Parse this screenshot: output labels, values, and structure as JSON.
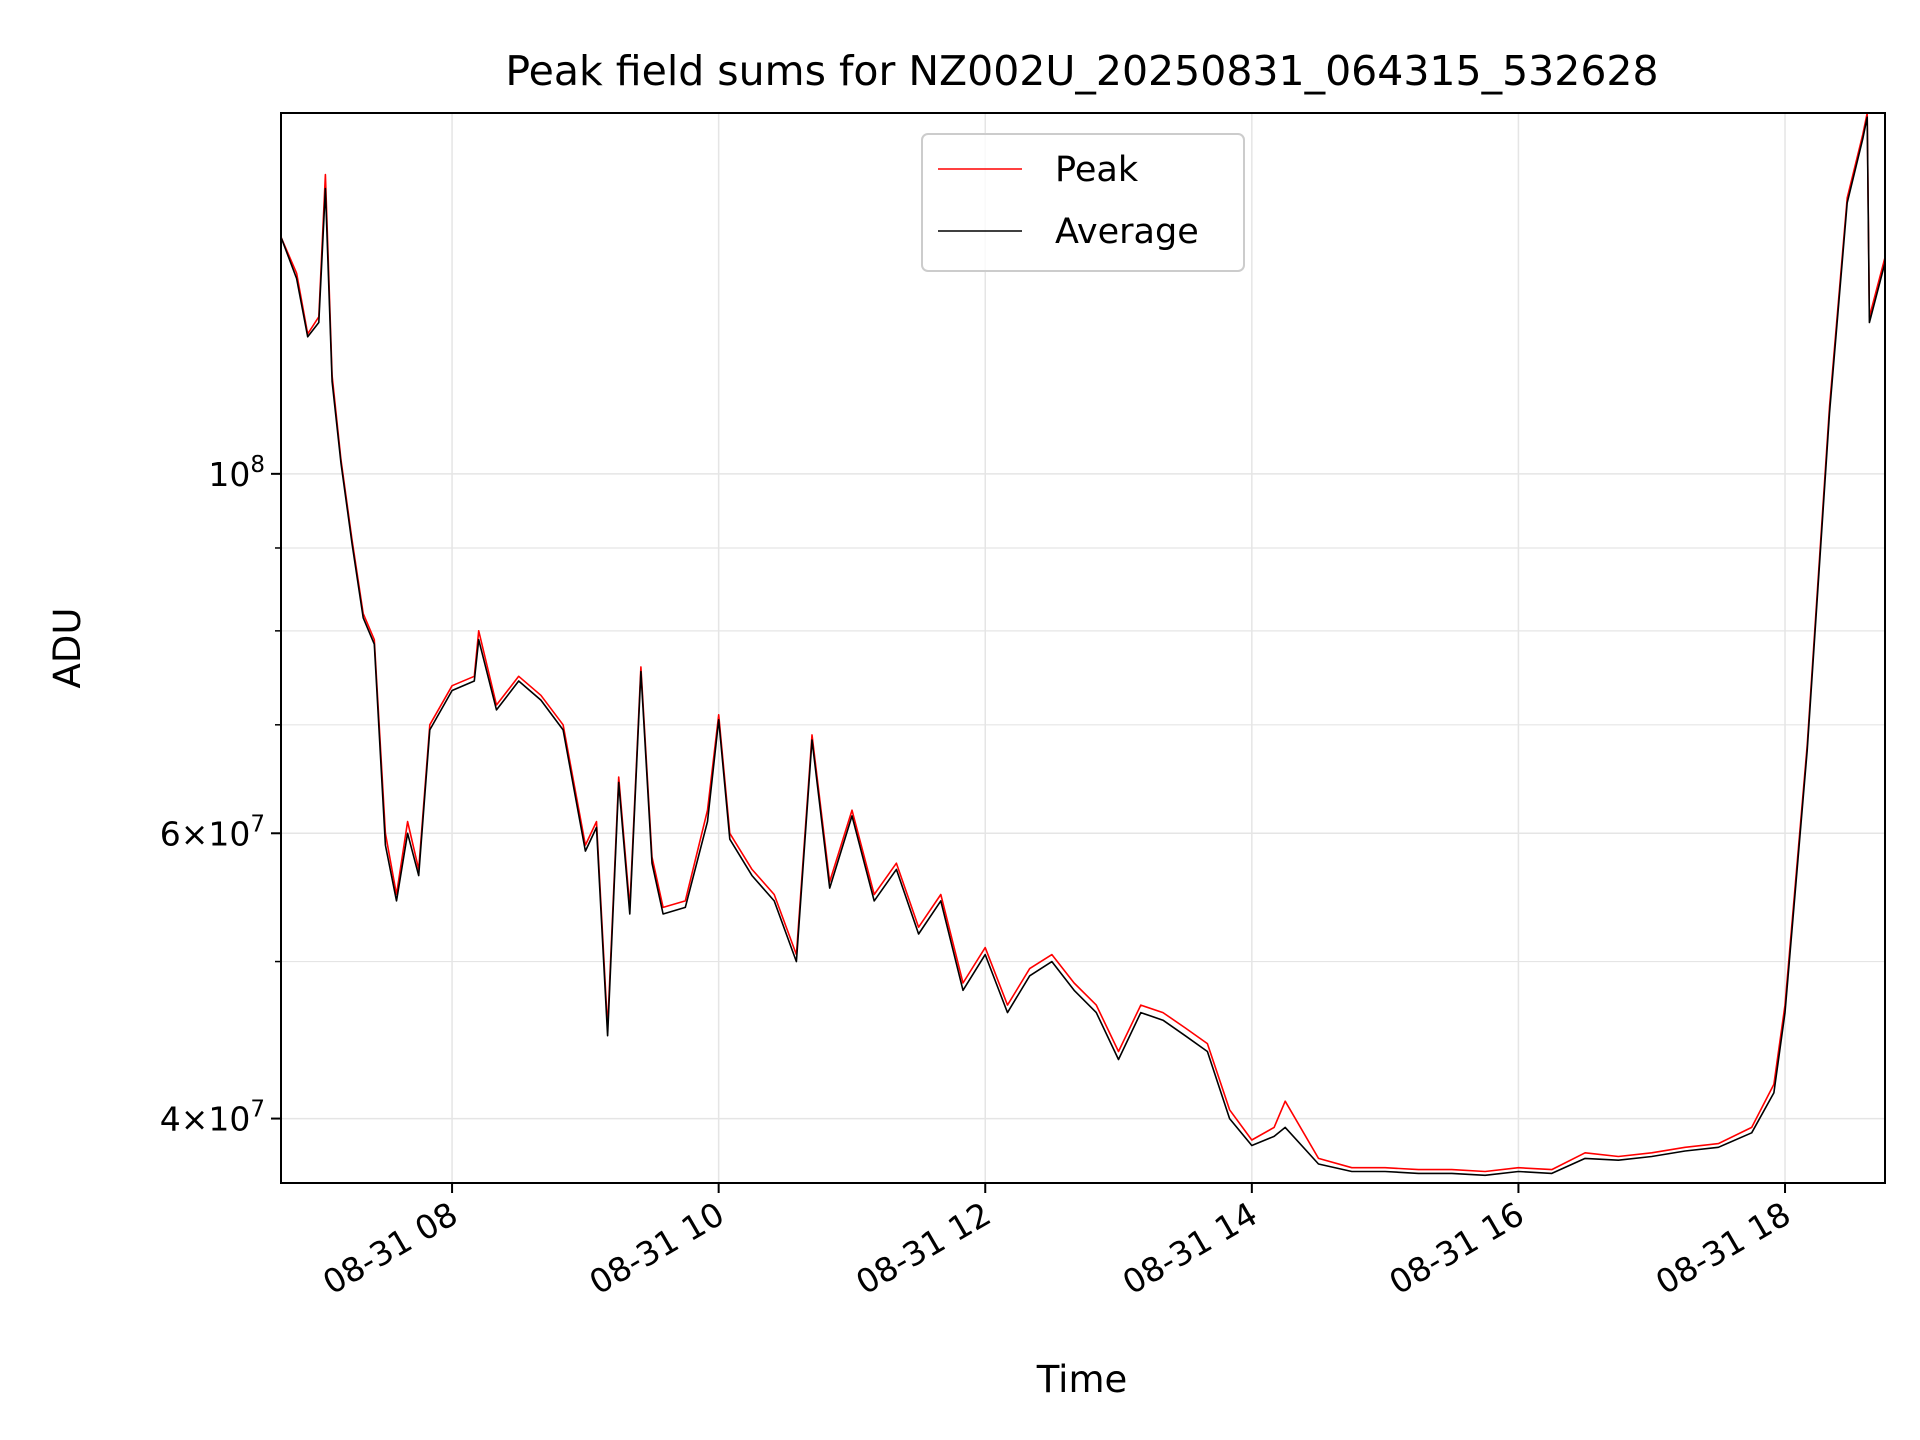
{
  "chart_data": {
    "type": "line",
    "title": "Peak field sums for NZ002U_20250831_064315_532628",
    "xlabel": "Time",
    "ylabel": "ADU",
    "x_axis_type": "time",
    "xlim": [
      "2025-08-31T06:43",
      "2025-08-31T18:45"
    ],
    "ylim": [
      36500000,
      167000000
    ],
    "yscale": "log",
    "grid": true,
    "legend_position": "top-center",
    "x_tick_labels": [
      "08-31 08",
      "08-31 10",
      "08-31 12",
      "08-31 14",
      "08-31 16",
      "08-31 18"
    ],
    "x_ticks": [
      "2025-08-31T08:00",
      "2025-08-31T10:00",
      "2025-08-31T12:00",
      "2025-08-31T14:00",
      "2025-08-31T16:00",
      "2025-08-31T18:00"
    ],
    "y_tick_labels": [
      {
        "mantissa": "",
        "base": "10",
        "exp": "8",
        "value": 100000000
      },
      {
        "mantissa": "6",
        "base": "10",
        "exp": "7",
        "value": 60000000
      },
      {
        "mantissa": "4",
        "base": "10",
        "exp": "7",
        "value": 40000000
      }
    ],
    "y_minor_ticks": [
      50000000,
      70000000,
      80000000,
      90000000
    ],
    "series": [
      {
        "name": "Peak",
        "color": "#ff0000",
        "points": [
          [
            "2025-08-31T06:43",
            140000000
          ],
          [
            "2025-08-31T06:50",
            133000000
          ],
          [
            "2025-08-31T06:55",
            122000000
          ],
          [
            "2025-08-31T07:00",
            125000000
          ],
          [
            "2025-08-31T07:03",
            153000000
          ],
          [
            "2025-08-31T07:06",
            115000000
          ],
          [
            "2025-08-31T07:10",
            102000000
          ],
          [
            "2025-08-31T07:15",
            91000000
          ],
          [
            "2025-08-31T07:20",
            82000000
          ],
          [
            "2025-08-31T07:25",
            79000000
          ],
          [
            "2025-08-31T07:30",
            60000000
          ],
          [
            "2025-08-31T07:35",
            55000000
          ],
          [
            "2025-08-31T07:40",
            61000000
          ],
          [
            "2025-08-31T07:45",
            57000000
          ],
          [
            "2025-08-31T07:50",
            70000000
          ],
          [
            "2025-08-31T08:00",
            74000000
          ],
          [
            "2025-08-31T08:10",
            75000000
          ],
          [
            "2025-08-31T08:12",
            80000000
          ],
          [
            "2025-08-31T08:20",
            72000000
          ],
          [
            "2025-08-31T08:30",
            75000000
          ],
          [
            "2025-08-31T08:40",
            73000000
          ],
          [
            "2025-08-31T08:50",
            70000000
          ],
          [
            "2025-08-31T09:00",
            59000000
          ],
          [
            "2025-08-31T09:05",
            61000000
          ],
          [
            "2025-08-31T09:10",
            45500000
          ],
          [
            "2025-08-31T09:15",
            65000000
          ],
          [
            "2025-08-31T09:20",
            54000000
          ],
          [
            "2025-08-31T09:25",
            76000000
          ],
          [
            "2025-08-31T09:30",
            58000000
          ],
          [
            "2025-08-31T09:35",
            54000000
          ],
          [
            "2025-08-31T09:45",
            54500000
          ],
          [
            "2025-08-31T09:55",
            62000000
          ],
          [
            "2025-08-31T10:00",
            71000000
          ],
          [
            "2025-08-31T10:05",
            60000000
          ],
          [
            "2025-08-31T10:15",
            57000000
          ],
          [
            "2025-08-31T10:25",
            55000000
          ],
          [
            "2025-08-31T10:35",
            50500000
          ],
          [
            "2025-08-31T10:42",
            69000000
          ],
          [
            "2025-08-31T10:50",
            56000000
          ],
          [
            "2025-08-31T11:00",
            62000000
          ],
          [
            "2025-08-31T11:10",
            55000000
          ],
          [
            "2025-08-31T11:20",
            57500000
          ],
          [
            "2025-08-31T11:30",
            52500000
          ],
          [
            "2025-08-31T11:40",
            55000000
          ],
          [
            "2025-08-31T11:50",
            48500000
          ],
          [
            "2025-08-31T12:00",
            51000000
          ],
          [
            "2025-08-31T12:10",
            47000000
          ],
          [
            "2025-08-31T12:20",
            49500000
          ],
          [
            "2025-08-31T12:30",
            50500000
          ],
          [
            "2025-08-31T12:40",
            48500000
          ],
          [
            "2025-08-31T12:50",
            47000000
          ],
          [
            "2025-08-31T13:00",
            44000000
          ],
          [
            "2025-08-31T13:10",
            47000000
          ],
          [
            "2025-08-31T13:20",
            46500000
          ],
          [
            "2025-08-31T13:30",
            45500000
          ],
          [
            "2025-08-31T13:40",
            44500000
          ],
          [
            "2025-08-31T13:50",
            40500000
          ],
          [
            "2025-08-31T14:00",
            38800000
          ],
          [
            "2025-08-31T14:10",
            39500000
          ],
          [
            "2025-08-31T14:15",
            41000000
          ],
          [
            "2025-08-31T14:30",
            37800000
          ],
          [
            "2025-08-31T14:45",
            37300000
          ],
          [
            "2025-08-31T15:00",
            37300000
          ],
          [
            "2025-08-31T15:15",
            37200000
          ],
          [
            "2025-08-31T15:30",
            37200000
          ],
          [
            "2025-08-31T15:45",
            37100000
          ],
          [
            "2025-08-31T16:00",
            37300000
          ],
          [
            "2025-08-31T16:15",
            37200000
          ],
          [
            "2025-08-31T16:30",
            38100000
          ],
          [
            "2025-08-31T16:45",
            37900000
          ],
          [
            "2025-08-31T17:00",
            38100000
          ],
          [
            "2025-08-31T17:15",
            38400000
          ],
          [
            "2025-08-31T17:30",
            38600000
          ],
          [
            "2025-08-31T17:45",
            39500000
          ],
          [
            "2025-08-31T17:55",
            42000000
          ],
          [
            "2025-08-31T18:00",
            47000000
          ],
          [
            "2025-08-31T18:10",
            68000000
          ],
          [
            "2025-08-31T18:20",
            110000000
          ],
          [
            "2025-08-31T18:28",
            148000000
          ],
          [
            "2025-08-31T18:35",
            162000000
          ],
          [
            "2025-08-31T18:37",
            167000000
          ],
          [
            "2025-08-31T18:38",
            125000000
          ],
          [
            "2025-08-31T18:45",
            136000000
          ]
        ]
      },
      {
        "name": "Average",
        "color": "#000000",
        "points": [
          [
            "2025-08-31T06:43",
            140000000
          ],
          [
            "2025-08-31T06:50",
            132000000
          ],
          [
            "2025-08-31T06:55",
            121500000
          ],
          [
            "2025-08-31T07:00",
            124000000
          ],
          [
            "2025-08-31T07:03",
            150000000
          ],
          [
            "2025-08-31T07:06",
            114000000
          ],
          [
            "2025-08-31T07:10",
            101500000
          ],
          [
            "2025-08-31T07:15",
            90500000
          ],
          [
            "2025-08-31T07:20",
            81500000
          ],
          [
            "2025-08-31T07:25",
            78500000
          ],
          [
            "2025-08-31T07:30",
            59000000
          ],
          [
            "2025-08-31T07:35",
            54500000
          ],
          [
            "2025-08-31T07:40",
            60000000
          ],
          [
            "2025-08-31T07:45",
            56500000
          ],
          [
            "2025-08-31T07:50",
            69500000
          ],
          [
            "2025-08-31T08:00",
            73500000
          ],
          [
            "2025-08-31T08:10",
            74500000
          ],
          [
            "2025-08-31T08:12",
            79000000
          ],
          [
            "2025-08-31T08:20",
            71500000
          ],
          [
            "2025-08-31T08:30",
            74500000
          ],
          [
            "2025-08-31T08:40",
            72500000
          ],
          [
            "2025-08-31T08:50",
            69500000
          ],
          [
            "2025-08-31T09:00",
            58500000
          ],
          [
            "2025-08-31T09:05",
            60500000
          ],
          [
            "2025-08-31T09:10",
            45000000
          ],
          [
            "2025-08-31T09:15",
            64500000
          ],
          [
            "2025-08-31T09:20",
            53500000
          ],
          [
            "2025-08-31T09:25",
            75500000
          ],
          [
            "2025-08-31T09:30",
            57500000
          ],
          [
            "2025-08-31T09:35",
            53500000
          ],
          [
            "2025-08-31T09:45",
            54000000
          ],
          [
            "2025-08-31T09:55",
            61000000
          ],
          [
            "2025-08-31T10:00",
            70500000
          ],
          [
            "2025-08-31T10:05",
            59500000
          ],
          [
            "2025-08-31T10:15",
            56500000
          ],
          [
            "2025-08-31T10:25",
            54500000
          ],
          [
            "2025-08-31T10:35",
            50000000
          ],
          [
            "2025-08-31T10:42",
            68500000
          ],
          [
            "2025-08-31T10:50",
            55500000
          ],
          [
            "2025-08-31T11:00",
            61500000
          ],
          [
            "2025-08-31T11:10",
            54500000
          ],
          [
            "2025-08-31T11:20",
            57000000
          ],
          [
            "2025-08-31T11:30",
            52000000
          ],
          [
            "2025-08-31T11:40",
            54500000
          ],
          [
            "2025-08-31T11:50",
            48000000
          ],
          [
            "2025-08-31T12:00",
            50500000
          ],
          [
            "2025-08-31T12:10",
            46500000
          ],
          [
            "2025-08-31T12:20",
            49000000
          ],
          [
            "2025-08-31T12:30",
            50000000
          ],
          [
            "2025-08-31T12:40",
            48000000
          ],
          [
            "2025-08-31T12:50",
            46500000
          ],
          [
            "2025-08-31T13:00",
            43500000
          ],
          [
            "2025-08-31T13:10",
            46500000
          ],
          [
            "2025-08-31T13:20",
            46000000
          ],
          [
            "2025-08-31T13:30",
            45000000
          ],
          [
            "2025-08-31T13:40",
            44000000
          ],
          [
            "2025-08-31T13:50",
            40000000
          ],
          [
            "2025-08-31T14:00",
            38500000
          ],
          [
            "2025-08-31T14:10",
            39000000
          ],
          [
            "2025-08-31T14:15",
            39500000
          ],
          [
            "2025-08-31T14:30",
            37500000
          ],
          [
            "2025-08-31T14:45",
            37100000
          ],
          [
            "2025-08-31T15:00",
            37100000
          ],
          [
            "2025-08-31T15:15",
            37000000
          ],
          [
            "2025-08-31T15:30",
            37000000
          ],
          [
            "2025-08-31T15:45",
            36900000
          ],
          [
            "2025-08-31T16:00",
            37100000
          ],
          [
            "2025-08-31T16:15",
            37000000
          ],
          [
            "2025-08-31T16:30",
            37800000
          ],
          [
            "2025-08-31T16:45",
            37700000
          ],
          [
            "2025-08-31T17:00",
            37900000
          ],
          [
            "2025-08-31T17:15",
            38200000
          ],
          [
            "2025-08-31T17:30",
            38400000
          ],
          [
            "2025-08-31T17:45",
            39200000
          ],
          [
            "2025-08-31T17:55",
            41500000
          ],
          [
            "2025-08-31T18:00",
            46500000
          ],
          [
            "2025-08-31T18:10",
            67500000
          ],
          [
            "2025-08-31T18:20",
            109000000
          ],
          [
            "2025-08-31T18:28",
            147000000
          ],
          [
            "2025-08-31T18:35",
            161000000
          ],
          [
            "2025-08-31T18:37",
            166000000
          ],
          [
            "2025-08-31T18:38",
            124000000
          ],
          [
            "2025-08-31T18:45",
            135000000
          ]
        ]
      }
    ]
  }
}
